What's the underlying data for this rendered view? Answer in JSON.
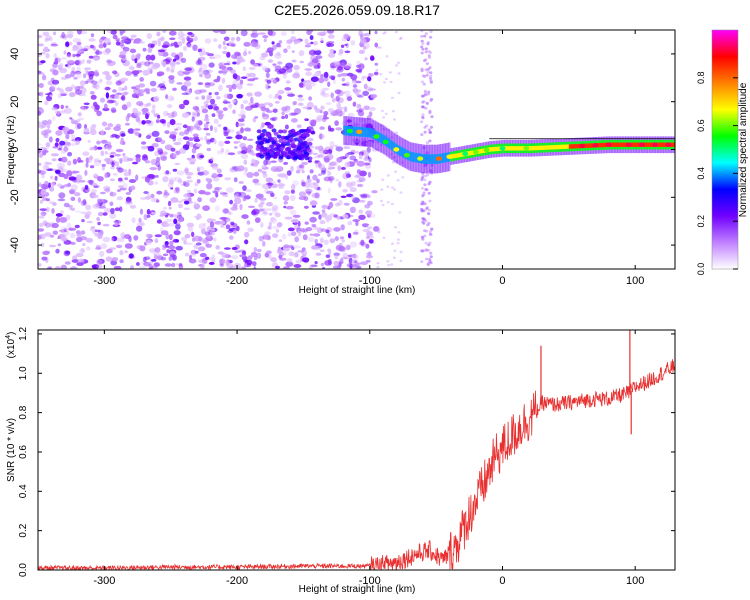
{
  "title": "C2E5.2026.059.09.18.R17",
  "chart_data": [
    {
      "type": "heatmap",
      "name": "spectrogram",
      "xlabel": "Height of straight line (km)",
      "ylabel": "Frequency (Hz)",
      "xlim": [
        -350,
        130
      ],
      "ylim": [
        -50,
        50
      ],
      "xticks": [
        -300,
        -200,
        -100,
        0,
        100
      ],
      "yticks": [
        -40,
        -20,
        0,
        20,
        40
      ],
      "colorbar": {
        "label": "Normalized spectral amplitude",
        "range": [
          0,
          1
        ],
        "ticks": [
          "0.0",
          "0.2",
          "0.4",
          "0.6",
          "0.8"
        ],
        "tick_values": [
          0.0,
          0.2,
          0.4,
          0.6,
          0.8
        ],
        "colors": [
          "#ffffff",
          "#c080ff",
          "#7000ff",
          "#0000ff",
          "#00ffff",
          "#00ff00",
          "#ffff00",
          "#ff8000",
          "#ff0000",
          "#ff00ff"
        ]
      },
      "features": {
        "noise_region_x": [
          -350,
          -95
        ],
        "noise_cluster_x": [
          -185,
          -145
        ],
        "noise_cluster_freq": 2,
        "gap_column_x": -57,
        "carrier_track": {
          "x": [
            -120,
            -100,
            -90,
            -80,
            -70,
            -60,
            -50,
            -40,
            -30,
            -20,
            -10,
            0,
            10,
            20,
            40,
            60,
            80,
            100,
            130
          ],
          "freq": [
            8,
            7,
            4,
            0,
            -3,
            -4,
            -4,
            -3,
            -2,
            -1,
            0,
            0.5,
            0.5,
            0.5,
            1,
            1.5,
            2,
            2,
            2
          ]
        }
      }
    },
    {
      "type": "line",
      "name": "snr",
      "xlabel": "Height of straight line (km)",
      "ylabel": "SNR (10 * v/v)",
      "multiplier_label": "(x10",
      "multiplier_exponent": "4",
      "multiplier_close": ")",
      "xlim": [
        -350,
        130
      ],
      "ylim": [
        0,
        1.22
      ],
      "xticks": [
        -300,
        -200,
        -100,
        0,
        100
      ],
      "yticks": [
        0.0,
        0.2,
        0.4,
        0.6,
        0.8,
        1.0,
        1.2
      ],
      "color": "#e83030",
      "series": {
        "x": [
          -350,
          -300,
          -250,
          -200,
          -150,
          -110,
          -95,
          -80,
          -65,
          -55,
          -45,
          -35,
          -25,
          -15,
          -5,
          5,
          15,
          25,
          30,
          40,
          50,
          60,
          70,
          80,
          90,
          95,
          100,
          110,
          120,
          130
        ],
        "y": [
          0.01,
          0.01,
          0.015,
          0.015,
          0.02,
          0.02,
          0.02,
          0.04,
          0.08,
          0.1,
          0.05,
          0.12,
          0.28,
          0.42,
          0.58,
          0.66,
          0.74,
          0.8,
          0.85,
          0.84,
          0.85,
          0.86,
          0.87,
          0.87,
          0.89,
          0.9,
          0.93,
          0.96,
          1.0,
          1.04
        ]
      },
      "spikes": [
        {
          "x": 29,
          "y": 1.14
        },
        {
          "x": 96,
          "y": 1.22
        },
        {
          "x": 97,
          "y": 0.69
        }
      ]
    }
  ]
}
